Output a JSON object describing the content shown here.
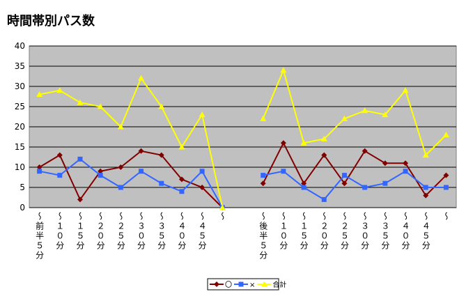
{
  "chart_data": {
    "type": "line",
    "title": "時間帯別パス数",
    "categories": [
      "〜前半５分",
      "〜１０分",
      "〜１５分",
      "〜２０分",
      "〜２５分",
      "〜３０分",
      "〜３５分",
      "〜４０分",
      "〜４５分",
      "〜",
      null,
      "〜後半５分",
      "〜１０分",
      "〜１５分",
      "〜２０分",
      "〜２５分",
      "〜３０分",
      "〜３５分",
      "〜４０分",
      "〜４５分",
      "〜"
    ],
    "series": [
      {
        "name": "〇",
        "color": "#800000",
        "marker": "diamond",
        "values": [
          10,
          13,
          2,
          9,
          10,
          14,
          13,
          7,
          5,
          0,
          null,
          6,
          16,
          6,
          13,
          6,
          14,
          11,
          11,
          3,
          8
        ]
      },
      {
        "name": "×",
        "color": "#3366ff",
        "marker": "square",
        "values": [
          9,
          8,
          12,
          8,
          5,
          9,
          6,
          4,
          9,
          0,
          null,
          8,
          9,
          5,
          2,
          8,
          5,
          6,
          9,
          5,
          5
        ]
      },
      {
        "name": "合計",
        "color": "#ffff00",
        "marker": "triangle",
        "values": [
          28,
          29,
          26,
          25,
          20,
          32,
          25,
          15,
          23,
          0,
          null,
          22,
          34,
          16,
          17,
          22,
          24,
          23,
          29,
          13,
          18
        ]
      }
    ],
    "ylim": [
      0,
      40
    ],
    "yticks": [
      0,
      5,
      10,
      15,
      20,
      25,
      30,
      35,
      40
    ],
    "grid": true,
    "legend": "bottom"
  }
}
